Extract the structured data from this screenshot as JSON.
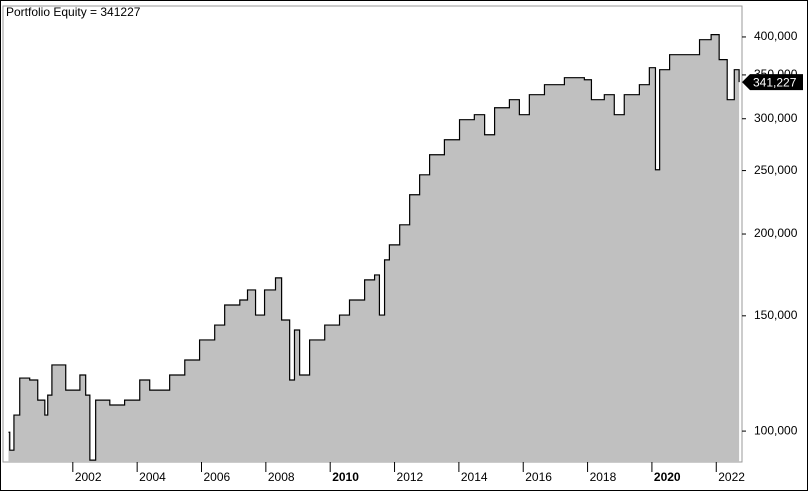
{
  "chart_data": {
    "type": "area",
    "title": "Portfolio Equity = 341227",
    "x": [
      2000.0,
      2000.04,
      2000.17,
      2000.35,
      2000.66,
      2000.91,
      2001.13,
      2001.22,
      2001.35,
      2001.66,
      2001.78,
      2002.22,
      2002.4,
      2002.53,
      2002.71,
      2003.15,
      2003.61,
      2004.08,
      2004.39,
      2005.01,
      2005.48,
      2005.94,
      2006.41,
      2006.72,
      2007.19,
      2007.43,
      2007.68,
      2007.96,
      2008.3,
      2008.49,
      2008.74,
      2008.89,
      2009.05,
      2009.36,
      2009.83,
      2010.29,
      2010.6,
      2011.07,
      2011.38,
      2011.53,
      2011.69,
      2011.84,
      2012.16,
      2012.47,
      2012.78,
      2013.09,
      2013.55,
      2014.02,
      2014.48,
      2014.8,
      2015.11,
      2015.57,
      2015.88,
      2016.19,
      2016.66,
      2017.28,
      2017.9,
      2018.12,
      2018.52,
      2018.83,
      2019.14,
      2019.61,
      2019.92,
      2020.11,
      2020.24,
      2020.55,
      2021.01,
      2021.48,
      2021.84,
      2022.09,
      2022.34,
      2022.56,
      2022.71
    ],
    "series": [
      {
        "name": "Portfolio Equity",
        "color": "#000000",
        "fill": "#c0c0c0",
        "values": [
          99600,
          93500,
          105800,
          120500,
          119700,
          111500,
          105800,
          113500,
          126200,
          126200,
          115500,
          121800,
          113500,
          90300,
          111500,
          109600,
          111500,
          119700,
          115500,
          121800,
          128400,
          137800,
          145200,
          155800,
          158600,
          164300,
          150400,
          164300,
          171400,
          147800,
          119700,
          142700,
          121800,
          137800,
          145200,
          150400,
          158600,
          170200,
          173200,
          150400,
          182600,
          192500,
          206600,
          229600,
          246300,
          264300,
          278600,
          299000,
          304300,
          283600,
          311800,
          320800,
          304300,
          326500,
          338200,
          346600,
          344100,
          320800,
          326500,
          304300,
          326500,
          338200,
          359000,
          250700,
          356500,
          375800,
          375800,
          396200,
          403300,
          369300,
          320800,
          356500,
          341227
        ]
      }
    ],
    "xlim": [
      1999.83,
      2022.8
    ],
    "xticks": [
      2002,
      2004,
      2006,
      2008,
      2010,
      2012,
      2014,
      2016,
      2018,
      2020,
      2022
    ],
    "ylim": [
      89700,
      446000
    ],
    "log_y": true,
    "yticks": [
      {
        "value": 100000,
        "label": "100,000"
      },
      {
        "value": 150000,
        "label": "150,000"
      },
      {
        "value": 200000,
        "label": "200,000"
      },
      {
        "value": 250000,
        "label": "250,000"
      },
      {
        "value": 300000,
        "label": "300,000"
      },
      {
        "value": 350000,
        "label": "350,000"
      },
      {
        "value": 400000,
        "label": "400,000"
      }
    ],
    "last_value": {
      "value": 341227,
      "label": "341,227"
    }
  }
}
